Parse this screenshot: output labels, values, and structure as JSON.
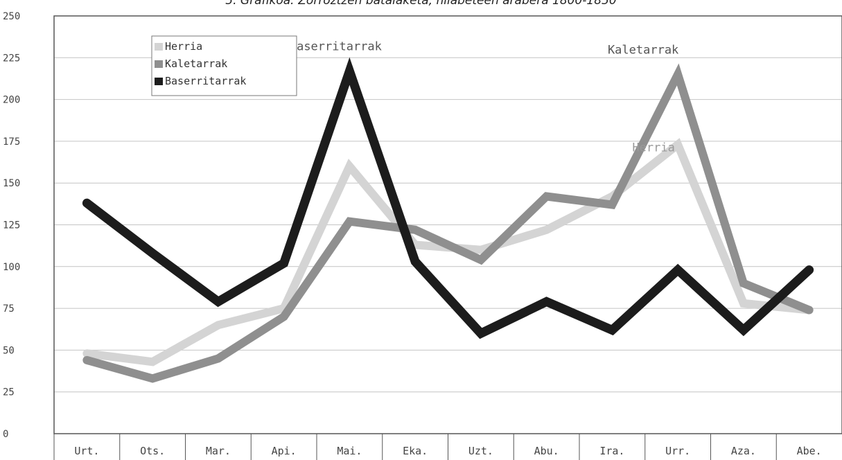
{
  "chart_data": {
    "type": "line",
    "title": "5. Grafikoa: Zorroztzen bataiaketa, hilabeteen arabera 1800-1850",
    "xlabel": "",
    "ylabel": "",
    "categories": [
      "Urt.",
      "Ots.",
      "Mar.",
      "Api.",
      "Mai.",
      "Eka.",
      "Uzt.",
      "Abu.",
      "Ira.",
      "Urr.",
      "Aza.",
      "Abe."
    ],
    "y_ticks": [
      "0",
      "25",
      "50",
      "75",
      "100",
      "125",
      "150",
      "175",
      "200",
      "225",
      "250"
    ],
    "ylim": [
      0,
      250
    ],
    "grid": true,
    "legend_position": "top-left",
    "series": [
      {
        "name": "Herria",
        "color": "#d4d4d4",
        "values": [
          48,
          43,
          65,
          75,
          160,
          113,
          110,
          122,
          142,
          173,
          78,
          74
        ]
      },
      {
        "name": "Kaletarrak",
        "color": "#8f8f8f",
        "values": [
          44,
          33,
          45,
          70,
          127,
          122,
          104,
          142,
          137,
          215,
          90,
          74
        ]
      },
      {
        "name": "Baserritarrak",
        "color": "#1c1c1c",
        "values": [
          138,
          108,
          79,
          102,
          217,
          103,
          60,
          79,
          62,
          98,
          62,
          98
        ]
      }
    ],
    "annotations": [
      {
        "text": "Baserritarrak",
        "series": "Baserritarrak"
      },
      {
        "text": "Kaletarrak",
        "series": "Kaletarrak"
      },
      {
        "text": "Herria",
        "series": "Herria"
      }
    ]
  }
}
